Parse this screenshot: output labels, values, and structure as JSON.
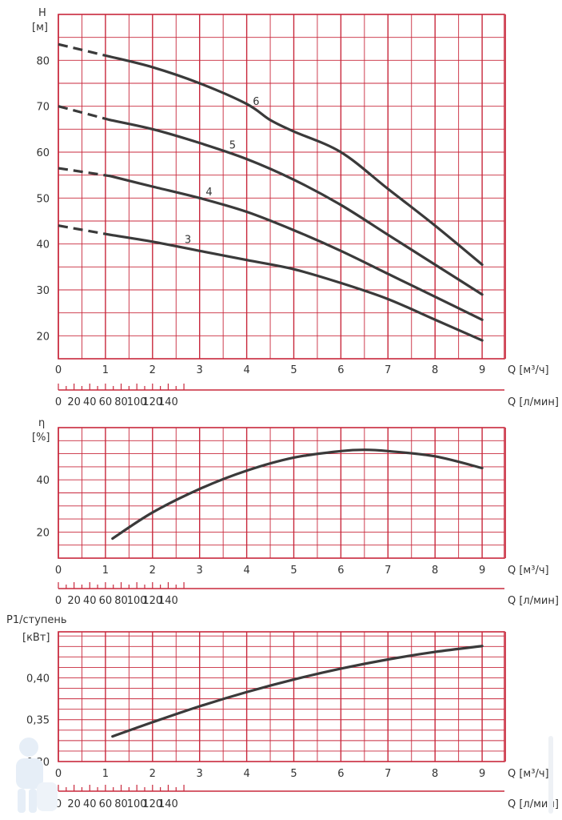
{
  "colors": {
    "grid": "#c8283c",
    "curve": "#3a3a3a",
    "text": "#333333"
  },
  "icons": {
    "logo": "plumber-mascot-logo",
    "side_text": "vertical-site-watermark"
  },
  "chart_data": [
    {
      "id": "head",
      "type": "line",
      "ylabel_line1": "H",
      "ylabel_line2": "[м]",
      "xlabel_m3h": "Q [м³/ч]",
      "xlabel_lmin": "Q [л/мин]",
      "xlim": [
        0,
        9.5
      ],
      "ylim": [
        15,
        90
      ],
      "y_ticks": [
        20,
        30,
        40,
        50,
        60,
        70,
        80
      ],
      "x_ticks_m3h": [
        "0",
        "1",
        "2",
        "3",
        "4",
        "5",
        "6",
        "7",
        "8",
        "9"
      ],
      "x_ticks_lmin": [
        "0",
        "20",
        "40",
        "60",
        "80",
        "100",
        "120",
        "140"
      ],
      "series": [
        {
          "name": "6",
          "dashed_x": [
            0,
            1.1
          ],
          "x": [
            1.1,
            2,
            3,
            4,
            4.5,
            5,
            6,
            7,
            8,
            9
          ],
          "y": [
            80.8,
            78.5,
            75.0,
            70.5,
            67.0,
            64.5,
            60.0,
            52.0,
            44.0,
            35.5
          ]
        },
        {
          "name": "5",
          "dashed_x": [
            0,
            1.1
          ],
          "x": [
            1.1,
            2,
            3,
            4,
            5,
            6,
            7,
            8,
            9
          ],
          "y": [
            67.0,
            65.0,
            62.0,
            58.5,
            54.0,
            48.5,
            42.0,
            35.5,
            29.0
          ]
        },
        {
          "name": "4",
          "dashed_x": [
            0,
            1.1
          ],
          "x": [
            1.1,
            2,
            3,
            4,
            5,
            6,
            7,
            8,
            9
          ],
          "y": [
            54.8,
            52.5,
            50.0,
            47.0,
            43.0,
            38.5,
            33.5,
            28.5,
            23.5
          ]
        },
        {
          "name": "3",
          "dashed_x": [
            0,
            1.1
          ],
          "x": [
            1.1,
            2,
            3,
            4,
            5,
            6,
            7,
            8,
            9
          ],
          "y": [
            42.0,
            40.5,
            38.5,
            36.5,
            34.5,
            31.5,
            28.0,
            23.5,
            19.0
          ]
        }
      ],
      "dashed_start_y": [
        83.5,
        70.0,
        56.5,
        44.0
      ]
    },
    {
      "id": "efficiency",
      "type": "line",
      "ylabel_line1": "η",
      "ylabel_line2": "[%]",
      "xlabel_m3h": "Q [м³/ч]",
      "xlabel_lmin": "Q [л/мин]",
      "xlim": [
        0,
        9.5
      ],
      "ylim": [
        10,
        60
      ],
      "y_ticks": [
        20,
        40
      ],
      "x_ticks_m3h": [
        "0",
        "1",
        "2",
        "3",
        "4",
        "5",
        "6",
        "7",
        "8",
        "9"
      ],
      "x_ticks_lmin": [
        "0",
        "20",
        "40",
        "60",
        "80",
        "100",
        "120",
        "140"
      ],
      "series": [
        {
          "name": "",
          "x": [
            1.15,
            2,
            3,
            4,
            5,
            6,
            6.5,
            7,
            8,
            9
          ],
          "y": [
            17.5,
            27.5,
            36.5,
            43.5,
            48.5,
            51.0,
            51.5,
            51.0,
            49.0,
            44.5
          ]
        }
      ]
    },
    {
      "id": "power",
      "type": "line",
      "ylabel_line1": "P1/ступень",
      "ylabel_line2": "[кВт]",
      "xlabel_m3h": "Q [м³/ч]",
      "xlabel_lmin": "Q [л/мин]",
      "xlim": [
        0,
        9.5
      ],
      "ylim": [
        0.3,
        0.455
      ],
      "y_ticks": [
        "0,30",
        "0,35",
        "0,40"
      ],
      "y_tick_values": [
        0.3,
        0.35,
        0.4
      ],
      "x_ticks_m3h": [
        "0",
        "1",
        "2",
        "3",
        "4",
        "5",
        "6",
        "7",
        "8",
        "9"
      ],
      "x_ticks_lmin": [
        "0",
        "20",
        "40",
        "60",
        "80",
        "100",
        "120",
        "140"
      ],
      "series": [
        {
          "name": "",
          "x": [
            1.15,
            2,
            3,
            4,
            5,
            6,
            7,
            8,
            9
          ],
          "y": [
            0.33,
            0.347,
            0.366,
            0.383,
            0.398,
            0.411,
            0.422,
            0.431,
            0.438
          ]
        }
      ]
    }
  ]
}
